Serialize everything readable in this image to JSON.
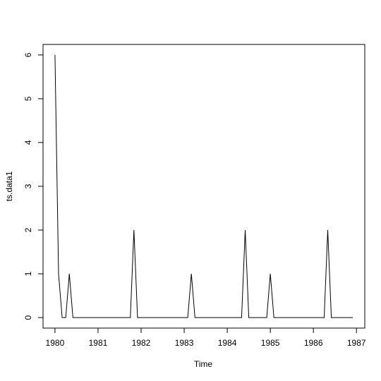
{
  "chart_data": {
    "type": "line",
    "x_label": "Time",
    "y_label": "ts.data1",
    "x": [
      1980,
      1980.0833,
      1980.1667,
      1980.25,
      1980.3333,
      1980.4167,
      1980.5,
      1980.5833,
      1980.6667,
      1980.75,
      1980.8333,
      1980.9167,
      1981,
      1981.0833,
      1981.1667,
      1981.25,
      1981.3333,
      1981.4167,
      1981.5,
      1981.5833,
      1981.6667,
      1981.75,
      1981.8333,
      1981.9167,
      1982,
      1982.0833,
      1982.1667,
      1982.25,
      1982.3333,
      1982.4167,
      1982.5,
      1982.5833,
      1982.6667,
      1982.75,
      1982.8333,
      1982.9167,
      1983,
      1983.0833,
      1983.1667,
      1983.25,
      1983.3333,
      1983.4167,
      1983.5,
      1983.5833,
      1983.6667,
      1983.75,
      1983.8333,
      1983.9167,
      1984,
      1984.0833,
      1984.1667,
      1984.25,
      1984.3333,
      1984.4167,
      1984.5,
      1984.5833,
      1984.6667,
      1984.75,
      1984.8333,
      1984.9167,
      1985,
      1985.0833,
      1985.1667,
      1985.25,
      1985.3333,
      1985.4167,
      1985.5,
      1985.5833,
      1985.6667,
      1985.75,
      1985.8333,
      1985.9167,
      1986,
      1986.0833,
      1986.1667,
      1986.25,
      1986.3333,
      1986.4167,
      1986.5,
      1986.5833,
      1986.6667,
      1986.75,
      1986.8333,
      1986.9167
    ],
    "series": [
      {
        "name": "ts.data1",
        "color": "#000000",
        "values": [
          6,
          1,
          0,
          0,
          1,
          0,
          0,
          0,
          0,
          0,
          0,
          0,
          0,
          0,
          0,
          0,
          0,
          0,
          0,
          0,
          0,
          0,
          2,
          0,
          0,
          0,
          0,
          0,
          0,
          0,
          0,
          0,
          0,
          0,
          0,
          0,
          0,
          0,
          1,
          0,
          0,
          0,
          0,
          0,
          0,
          0,
          0,
          0,
          0,
          0,
          0,
          0,
          0,
          2,
          0,
          0,
          0,
          0,
          0,
          0,
          1,
          0,
          0,
          0,
          0,
          0,
          0,
          0,
          0,
          0,
          0,
          0,
          0,
          0,
          0,
          0,
          2,
          0,
          0,
          0,
          0,
          0,
          0,
          0
        ]
      }
    ],
    "xlim": [
      1979.723,
      1987.193
    ],
    "ylim": [
      -0.24,
      6.24
    ],
    "xticks": [
      1980,
      1981,
      1982,
      1983,
      1984,
      1985,
      1986,
      1987
    ],
    "yticks": [
      0,
      1,
      2,
      3,
      4,
      5,
      6
    ]
  }
}
